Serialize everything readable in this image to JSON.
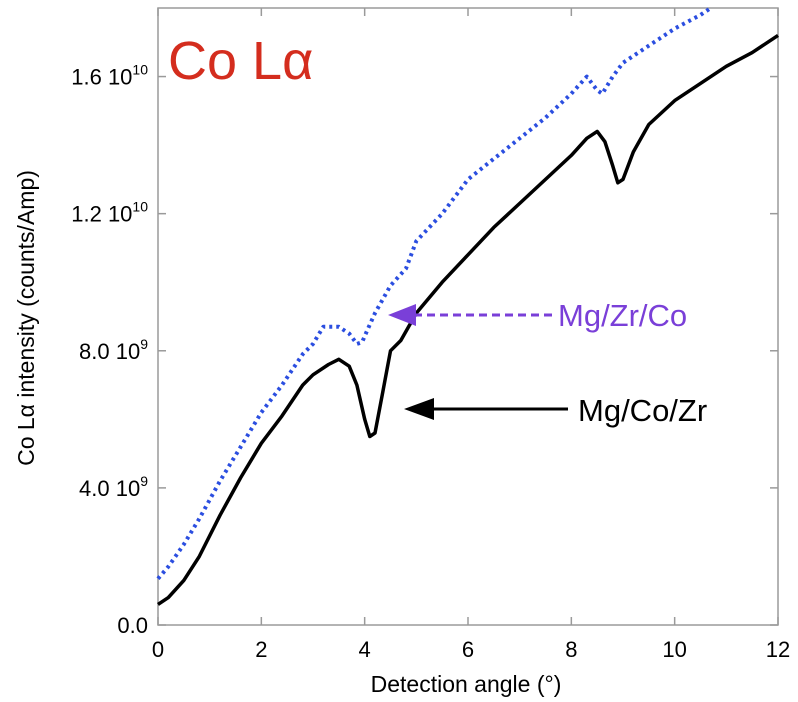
{
  "chart_data": {
    "type": "line",
    "title": "Co Lα",
    "title_color": "#d42d1e",
    "xlabel": "Detection angle (°)",
    "ylabel": "Co Lα intensity (counts/Amp)",
    "xlim": [
      0,
      12
    ],
    "ylim": [
      0,
      18000000000.0
    ],
    "x_ticks": [
      0,
      2,
      4,
      6,
      8,
      10,
      12
    ],
    "x_tick_labels": [
      "0",
      "2",
      "4",
      "6",
      "8",
      "10",
      "12"
    ],
    "y_ticks": [
      0,
      4000000000.0,
      8000000000.0,
      12000000000.0,
      16000000000.0
    ],
    "y_tick_labels": [
      {
        "mantissa": "0.0",
        "exponent": ""
      },
      {
        "mantissa": "4.0 10",
        "exponent": "9"
      },
      {
        "mantissa": "8.0 10",
        "exponent": "9"
      },
      {
        "mantissa": "1.2 10",
        "exponent": "10"
      },
      {
        "mantissa": "1.6 10",
        "exponent": "10"
      }
    ],
    "grid": false,
    "series": [
      {
        "name": "Mg/Zr/Co",
        "color": "#2b4ee0",
        "style": "dotted",
        "x": [
          0,
          0.2,
          0.5,
          0.8,
          1.2,
          1.6,
          2.0,
          2.4,
          2.8,
          3.0,
          3.2,
          3.5,
          3.7,
          3.85,
          3.95,
          4.05,
          4.2,
          4.5,
          4.8,
          5.0,
          5.5,
          6.0,
          6.5,
          7.0,
          7.5,
          8.0,
          8.3,
          8.5,
          8.6,
          8.8,
          9.0,
          9.5,
          10.0,
          10.5,
          10.7
        ],
        "y": [
          1350000000.0,
          1700000000.0,
          2350000000.0,
          3100000000.0,
          4200000000.0,
          5200000000.0,
          6200000000.0,
          7000000000.0,
          7900000000.0,
          8200000000.0,
          8700000000.0,
          8700000000.0,
          8500000000.0,
          8200000000.0,
          8250000000.0,
          8600000000.0,
          9100000000.0,
          9900000000.0,
          10400000000.0,
          11200000000.0,
          12000000000.0,
          13000000000.0,
          13600000000.0,
          14200000000.0,
          14800000000.0,
          15500000000.0,
          16000000000.0,
          15600000000.0,
          15500000000.0,
          16000000000.0,
          16400000000.0,
          16900000000.0,
          17400000000.0,
          17800000000.0,
          18000000000.0
        ]
      },
      {
        "name": "Mg/Co/Zr",
        "color": "#000000",
        "style": "solid",
        "x": [
          0,
          0.2,
          0.5,
          0.8,
          1.2,
          1.6,
          2.0,
          2.4,
          2.8,
          3.0,
          3.3,
          3.5,
          3.7,
          3.85,
          4.0,
          4.1,
          4.2,
          4.35,
          4.5,
          4.7,
          5.0,
          5.5,
          6.0,
          6.5,
          7.0,
          7.5,
          8.0,
          8.3,
          8.5,
          8.65,
          8.8,
          8.9,
          9.0,
          9.2,
          9.5,
          10.0,
          10.5,
          11.0,
          11.5,
          12.0
        ],
        "y": [
          600000000.0,
          800000000.0,
          1300000000.0,
          2000000000.0,
          3200000000.0,
          4300000000.0,
          5300000000.0,
          6100000000.0,
          7000000000.0,
          7300000000.0,
          7600000000.0,
          7750000000.0,
          7550000000.0,
          7000000000.0,
          6000000000.0,
          5500000000.0,
          5600000000.0,
          6800000000.0,
          8000000000.0,
          8300000000.0,
          9100000000.0,
          10000000000.0,
          10800000000.0,
          11600000000.0,
          12300000000.0,
          13000000000.0,
          13700000000.0,
          14200000000.0,
          14400000000.0,
          14100000000.0,
          13400000000.0,
          12900000000.0,
          13000000000.0,
          13800000000.0,
          14600000000.0,
          15300000000.0,
          15800000000.0,
          16300000000.0,
          16700000000.0,
          17200000000.0
        ]
      }
    ],
    "annotations": [
      {
        "text": "Mg/Zr/Co",
        "color": "#7a3fd8",
        "arrow_style": "dashed",
        "points_to": {
          "x": 4.5,
          "y": 9200000000.0
        }
      },
      {
        "text": "Mg/Co/Zr",
        "color": "#000000",
        "arrow_style": "solid",
        "points_to": {
          "x": 4.9,
          "y": 6400000000.0
        }
      }
    ]
  }
}
